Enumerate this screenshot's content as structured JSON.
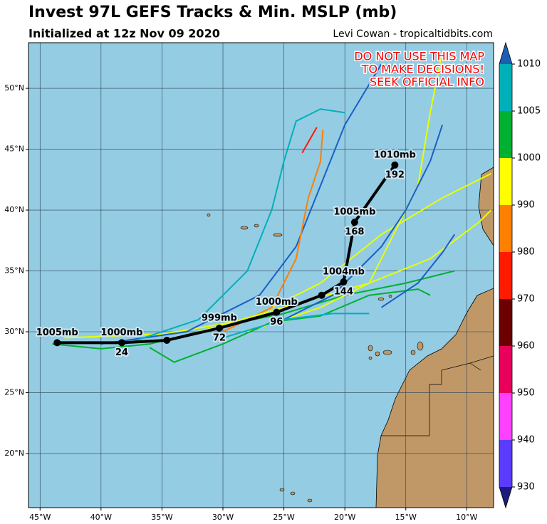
{
  "title": "Invest 97L GEFS Tracks & Min. MSLP (mb)",
  "subtitle": "Initialized at 12z Nov 09 2020",
  "credit": "Levi Cowan - tropicaltidbits.com",
  "warning": [
    "DO NOT USE THIS MAP",
    "TO MAKE DECISIONS!",
    "SEEK OFFICIAL INFO"
  ],
  "map": {
    "xlim": [
      -45.95,
      -7.8
    ],
    "ylim": [
      15.55,
      53.75
    ],
    "xticks": [
      {
        "value": -45,
        "label": "45°W"
      },
      {
        "value": -40,
        "label": "40°W"
      },
      {
        "value": -35,
        "label": "35°W"
      },
      {
        "value": -30,
        "label": "30°W"
      },
      {
        "value": -25,
        "label": "25°W"
      },
      {
        "value": -20,
        "label": "20°W"
      },
      {
        "value": -15,
        "label": "15°W"
      },
      {
        "value": -10,
        "label": "10°W"
      }
    ],
    "yticks": [
      {
        "value": 20,
        "label": "20°N"
      },
      {
        "value": 25,
        "label": "25°N"
      },
      {
        "value": 30,
        "label": "30°N"
      },
      {
        "value": 35,
        "label": "35°N"
      },
      {
        "value": 40,
        "label": "40°N"
      },
      {
        "value": 45,
        "label": "45°N"
      },
      {
        "value": 50,
        "label": "50°N"
      }
    ],
    "grid": true
  },
  "tracks": [
    {
      "color": "#00b030",
      "lon": [
        -44,
        -40,
        -36,
        -30,
        -25,
        -20,
        -15,
        -11
      ],
      "lat": [
        29,
        28.6,
        29,
        30.5,
        31.5,
        33,
        34,
        35
      ]
    },
    {
      "color": "#e8ff00",
      "lon": [
        -43,
        -35,
        -28,
        -22,
        -17,
        -12,
        -8
      ],
      "lat": [
        29.5,
        29.8,
        31,
        34,
        38,
        41,
        43
      ]
    },
    {
      "color": "#1a5fc4",
      "lon": [
        -40,
        -33,
        -27,
        -24,
        -22,
        -20,
        -17
      ],
      "lat": [
        29,
        30,
        33,
        37,
        42,
        47,
        52
      ]
    },
    {
      "color": "#00b0b8",
      "lon": [
        -38,
        -32,
        -28,
        -26,
        -25,
        -24,
        -22,
        -20
      ],
      "lat": [
        29,
        31,
        35,
        40,
        44,
        47.3,
        48.3,
        48
      ]
    },
    {
      "color": "#ff7f00",
      "lon": [
        -30,
        -26,
        -24,
        -23,
        -22,
        -21.8
      ],
      "lat": [
        30,
        32,
        36,
        41,
        44,
        46.6
      ]
    },
    {
      "color": "#ff1a00",
      "lon": [
        -23.5,
        -22.3
      ],
      "lat": [
        44.7,
        46.8
      ]
    },
    {
      "color": "#e8ff00",
      "lon": [
        -28,
        -22,
        -18,
        -16,
        -14,
        -13,
        -12
      ],
      "lat": [
        30,
        32,
        34,
        38,
        42,
        48,
        53
      ]
    },
    {
      "color": "#1a5fc4",
      "lon": [
        -25,
        -21,
        -17,
        -15,
        -13,
        -12
      ],
      "lat": [
        31,
        33,
        37,
        40,
        44,
        47
      ]
    },
    {
      "color": "#e8ff00",
      "lon": [
        -32,
        -25,
        -18,
        -13,
        -9,
        -8
      ],
      "lat": [
        30,
        32,
        34,
        36,
        39,
        40
      ]
    },
    {
      "color": "#00b030",
      "lon": [
        -36,
        -34,
        -30,
        -26,
        -22,
        -18,
        -14,
        -13
      ],
      "lat": [
        28.7,
        27.5,
        29,
        30.8,
        31.3,
        33,
        33.5,
        33
      ]
    },
    {
      "color": "#00b0b8",
      "lon": [
        -30,
        -25,
        -21,
        -18
      ],
      "lat": [
        29.5,
        31,
        31.5,
        31.5
      ]
    },
    {
      "color": "#1a5fc4",
      "lon": [
        -17,
        -14,
        -12,
        -11
      ],
      "lat": [
        32,
        34,
        36.5,
        38
      ]
    }
  ],
  "mean_track": [
    {
      "lon": -43.6,
      "lat": 29.1,
      "pressure": "1005mb"
    },
    {
      "lon": -38.3,
      "lat": 29.1,
      "pressure": "1000mb",
      "hour": 24
    },
    {
      "lon": -34.6,
      "lat": 29.3
    },
    {
      "lon": -30.3,
      "lat": 30.3,
      "pressure": "999mb",
      "hour": 72
    },
    {
      "lon": -25.6,
      "lat": 31.6,
      "pressure": "1000mb",
      "hour": 96
    },
    {
      "lon": -21.9,
      "lat": 33.0
    },
    {
      "lon": -20.1,
      "lat": 34.1,
      "pressure": "1004mb",
      "hour": 144
    },
    {
      "lon": -19.2,
      "lat": 39.0,
      "pressure": "1005mb",
      "hour": 168
    },
    {
      "lon": -15.9,
      "lat": 43.7,
      "pressure": "1010mb",
      "hour": 192
    }
  ],
  "colorbar": {
    "ticks": [
      930,
      940,
      950,
      960,
      970,
      980,
      990,
      1000,
      1005,
      1010
    ],
    "colors": [
      "#5b3cff",
      "#ff40ff",
      "#e8005a",
      "#6b0000",
      "#ff1a00",
      "#ff7f00",
      "#ffff00",
      "#00b030",
      "#00b0b8"
    ],
    "under": "#1c1c80",
    "over": "#1a5fb4"
  }
}
